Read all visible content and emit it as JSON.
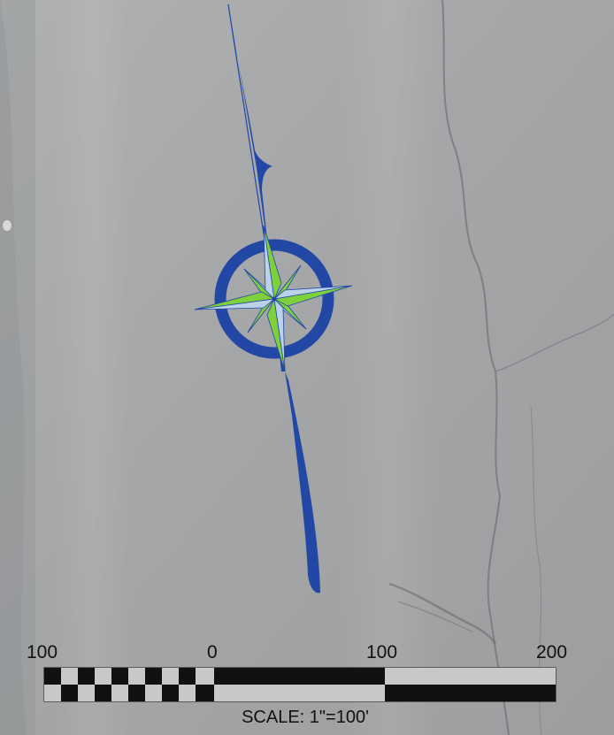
{
  "map": {
    "background": "aerial-imagery-gray",
    "colors": {
      "ground": "#a6a8aa",
      "compass_blue": "#2247a5",
      "compass_green": "#7fd13b",
      "compass_light": "#bcd2e8",
      "scale_black": "#111111",
      "scale_light": "#c8c8c8"
    }
  },
  "compass": {
    "icon": "compass-rose-icon"
  },
  "scale_bar": {
    "labels": [
      "100",
      "0",
      "100",
      "200"
    ],
    "caption": "SCALE: 1\"=100'"
  }
}
